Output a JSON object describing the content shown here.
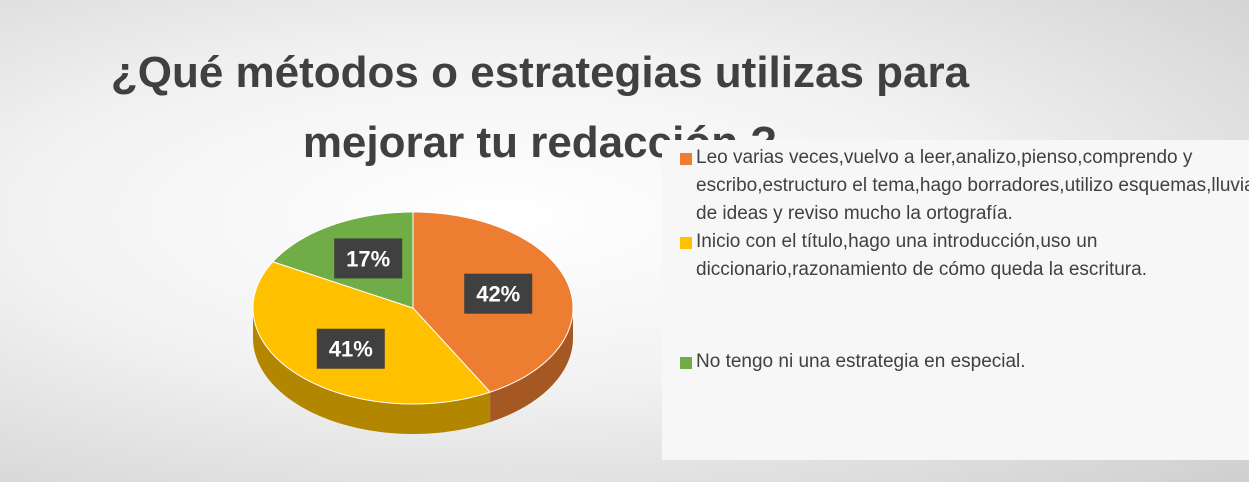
{
  "chart_data": {
    "type": "pie",
    "title": "¿Qué métodos o estrategias utilizas para mejorar tu redacción ?",
    "categories": [
      "Leo varias veces,vuelvo a leer,analizo,pienso,comprendo y escribo,estructuro el tema,hago borradores,utilizo esquemas,lluvias de ideas y reviso mucho la ortografía.",
      "Inicio con el título,hago una introducción,uso un diccionario,razonamiento de cómo queda la escritura.",
      "No tengo ni una estrategia en especial."
    ],
    "values": [
      42,
      41,
      17
    ],
    "value_labels": [
      "42%",
      "41%",
      "17%"
    ],
    "colors": [
      "#ED7D31",
      "#FFC000",
      "#70AD47"
    ],
    "legend": "right"
  }
}
